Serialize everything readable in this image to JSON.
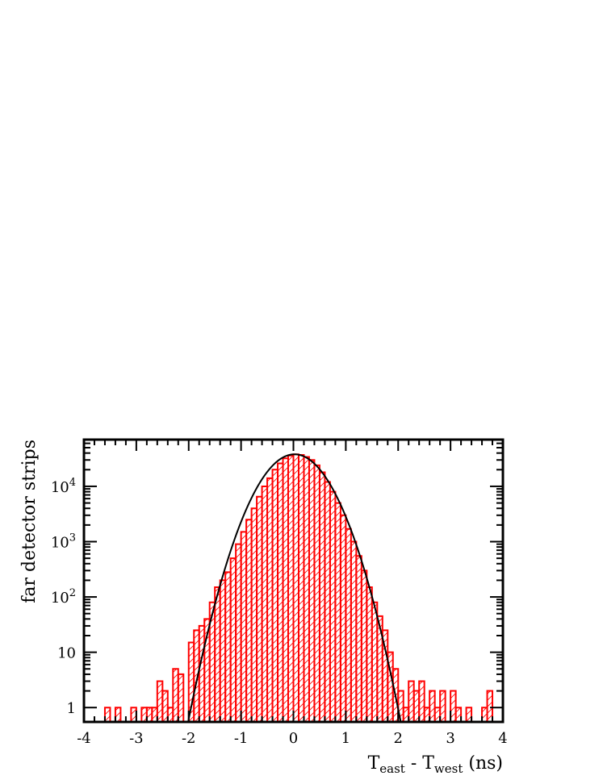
{
  "chart_data": {
    "type": "histogram",
    "xlabel": "T",
    "xlabel_sub1": "east",
    "xlabel_mid": " - T",
    "xlabel_sub2": "west",
    "xlabel_tail": " (ns)",
    "ylabel": "far detector strips",
    "xlim": [
      -4,
      4
    ],
    "ylim": [
      0.55,
      70000
    ],
    "y_scale": "log",
    "x_ticks": [
      "-4",
      "-3",
      "-2",
      "-1",
      "0",
      "1",
      "2",
      "3",
      "4"
    ],
    "y_ticks": [
      {
        "value": 1,
        "label": "1"
      },
      {
        "value": 10,
        "label": "10"
      },
      {
        "value": 100,
        "label": "10",
        "exp": "2"
      },
      {
        "value": 1000,
        "label": "10",
        "exp": "3"
      },
      {
        "value": 10000,
        "label": "10",
        "exp": "4"
      }
    ],
    "series": [
      {
        "style": "step-hatched",
        "color": "#ff0000",
        "bin_width": 0.1,
        "bins": [
          [
            -3.6,
            1
          ],
          [
            -3.4,
            1
          ],
          [
            -3.1,
            1
          ],
          [
            -2.9,
            1
          ],
          [
            -2.8,
            1
          ],
          [
            -2.7,
            1
          ],
          [
            -2.6,
            3
          ],
          [
            -2.5,
            2
          ],
          [
            -2.4,
            1
          ],
          [
            -2.3,
            5
          ],
          [
            -2.2,
            4
          ],
          [
            -2.0,
            15
          ],
          [
            -1.9,
            25
          ],
          [
            -1.8,
            30
          ],
          [
            -1.7,
            40
          ],
          [
            -1.6,
            80
          ],
          [
            -1.5,
            150
          ],
          [
            -1.4,
            200
          ],
          [
            -1.3,
            280
          ],
          [
            -1.2,
            500
          ],
          [
            -1.1,
            900
          ],
          [
            -1.0,
            1500
          ],
          [
            -0.9,
            2500
          ],
          [
            -0.8,
            4000
          ],
          [
            -0.7,
            6500
          ],
          [
            -0.6,
            10000
          ],
          [
            -0.5,
            14000
          ],
          [
            -0.4,
            20000
          ],
          [
            -0.3,
            26000
          ],
          [
            -0.2,
            32000
          ],
          [
            -0.1,
            36000
          ],
          [
            0.0,
            38000
          ],
          [
            0.1,
            37000
          ],
          [
            0.2,
            34000
          ],
          [
            0.3,
            30000
          ],
          [
            0.4,
            24000
          ],
          [
            0.5,
            18000
          ],
          [
            0.6,
            12000
          ],
          [
            0.7,
            8000
          ],
          [
            0.8,
            5000
          ],
          [
            0.9,
            3000
          ],
          [
            1.0,
            1700
          ],
          [
            1.1,
            1000
          ],
          [
            1.2,
            550
          ],
          [
            1.3,
            300
          ],
          [
            1.4,
            150
          ],
          [
            1.5,
            80
          ],
          [
            1.6,
            45
          ],
          [
            1.7,
            25
          ],
          [
            1.8,
            10
          ],
          [
            1.9,
            5
          ],
          [
            2.0,
            2
          ],
          [
            2.1,
            1
          ],
          [
            2.2,
            3
          ],
          [
            2.3,
            2
          ],
          [
            2.4,
            3
          ],
          [
            2.5,
            1
          ],
          [
            2.6,
            2
          ],
          [
            2.7,
            1
          ],
          [
            2.8,
            2
          ],
          [
            3.0,
            2
          ],
          [
            3.1,
            1
          ],
          [
            3.3,
            1
          ],
          [
            3.6,
            1
          ],
          [
            3.7,
            2
          ]
        ]
      },
      {
        "style": "fit-curve",
        "color": "#000000",
        "function": "gaussian",
        "amplitude": 38000,
        "mean": 0.02,
        "sigma": 0.43
      }
    ]
  }
}
